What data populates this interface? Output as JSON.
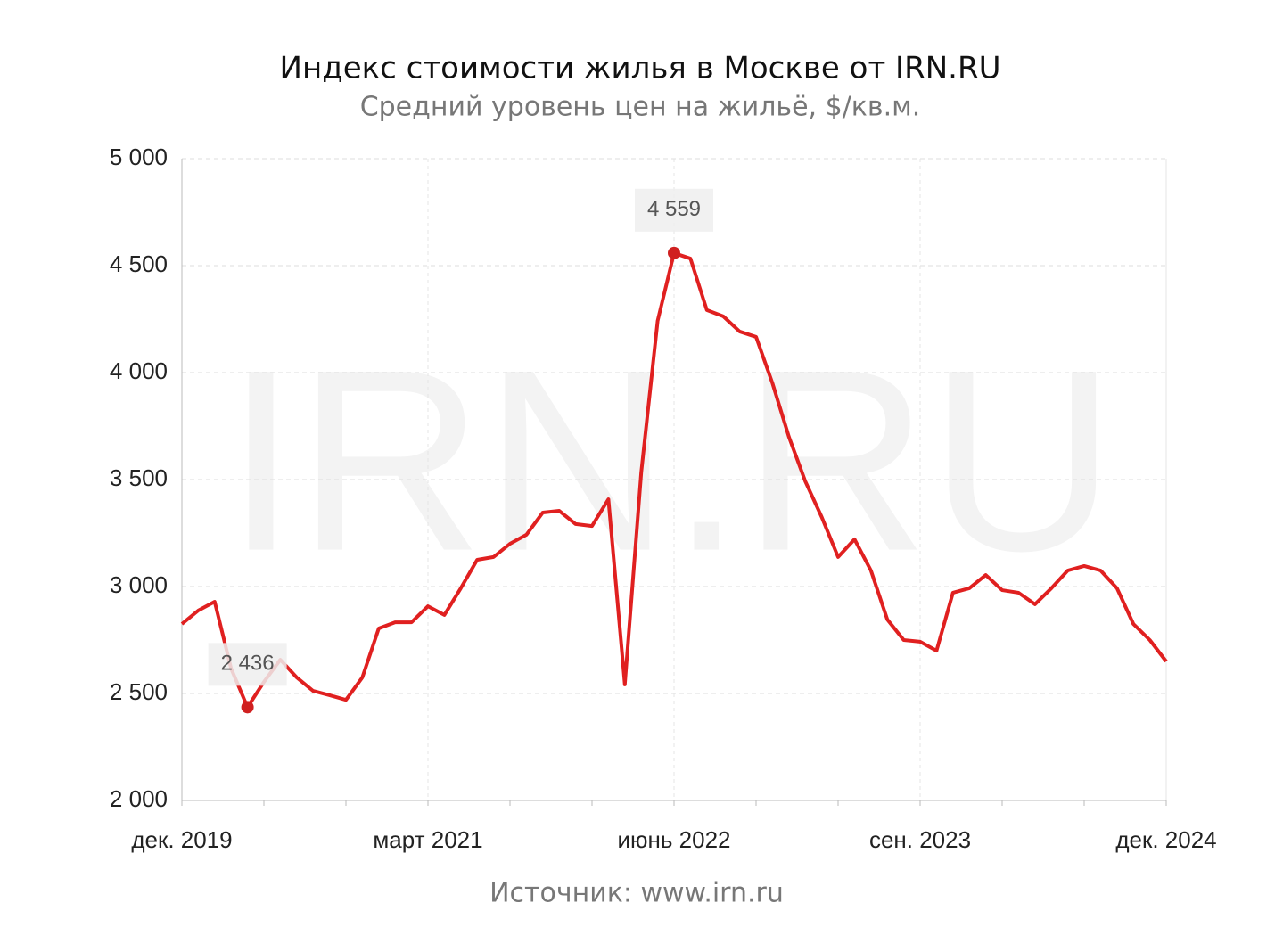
{
  "chart_data": {
    "type": "line",
    "title": "Индекс стоимости жилья в Москве от IRN.RU",
    "subtitle": "Средний уровень цен на жильё, $/кв.м.",
    "watermark": "IRN.RU",
    "source": "Источник: www.irn.ru",
    "categories": [
      "дек. 2019",
      null,
      null,
      null,
      null,
      null,
      null,
      null,
      null,
      null,
      null,
      null,
      null,
      null,
      null,
      "март 2021",
      null,
      null,
      null,
      null,
      null,
      null,
      null,
      null,
      null,
      null,
      null,
      null,
      null,
      null,
      "июнь 2022",
      null,
      null,
      null,
      null,
      null,
      null,
      null,
      null,
      null,
      null,
      null,
      null,
      null,
      null,
      "сен. 2023",
      null,
      null,
      null,
      null,
      null,
      null,
      null,
      null,
      null,
      null,
      null,
      null,
      null,
      null,
      "дек. 2024"
    ],
    "series": [
      {
        "name": "Индекс стоимости жилья",
        "color": "#e02020",
        "values": [
          2825,
          2888,
          2929,
          2617,
          2436,
          2554,
          2658,
          2575,
          2512,
          2492,
          2470,
          2575,
          2804,
          2833,
          2833,
          2908,
          2867,
          2992,
          3125,
          3138,
          3200,
          3242,
          3346,
          3354,
          3292,
          3283,
          3408,
          2542,
          3533,
          4242,
          4559,
          4533,
          4292,
          4263,
          4192,
          4167,
          3950,
          3700,
          3492,
          3325,
          3138,
          3221,
          3075,
          2846,
          2750,
          2742,
          2700,
          2971,
          2992,
          3054,
          2983,
          2971,
          2917,
          2992,
          3075,
          3096,
          3075,
          2992,
          2825,
          2750,
          2650
        ],
        "value_labels": [
          null,
          null,
          null,
          null,
          "2 436",
          null,
          null,
          null,
          null,
          null,
          null,
          null,
          null,
          null,
          null,
          null,
          null,
          null,
          null,
          null,
          null,
          null,
          null,
          null,
          null,
          null,
          null,
          null,
          null,
          null,
          "4 559",
          null,
          null,
          null,
          null,
          null,
          null,
          null,
          null,
          null,
          null,
          null,
          null,
          null,
          null,
          null,
          null,
          null,
          null,
          null,
          null,
          null,
          null,
          null,
          null,
          null,
          null,
          null,
          null,
          null,
          null
        ]
      }
    ],
    "ylim": [
      2000,
      5000
    ],
    "yticks": [
      {
        "value": 2000,
        "label": "2 000"
      },
      {
        "value": 2500,
        "label": "2 500"
      },
      {
        "value": 3000,
        "label": "3 000"
      },
      {
        "value": 3500,
        "label": "3 500"
      },
      {
        "value": 4000,
        "label": "4 000"
      },
      {
        "value": 4500,
        "label": "4 500"
      },
      {
        "value": 5000,
        "label": "5 000"
      }
    ],
    "grid": true
  }
}
